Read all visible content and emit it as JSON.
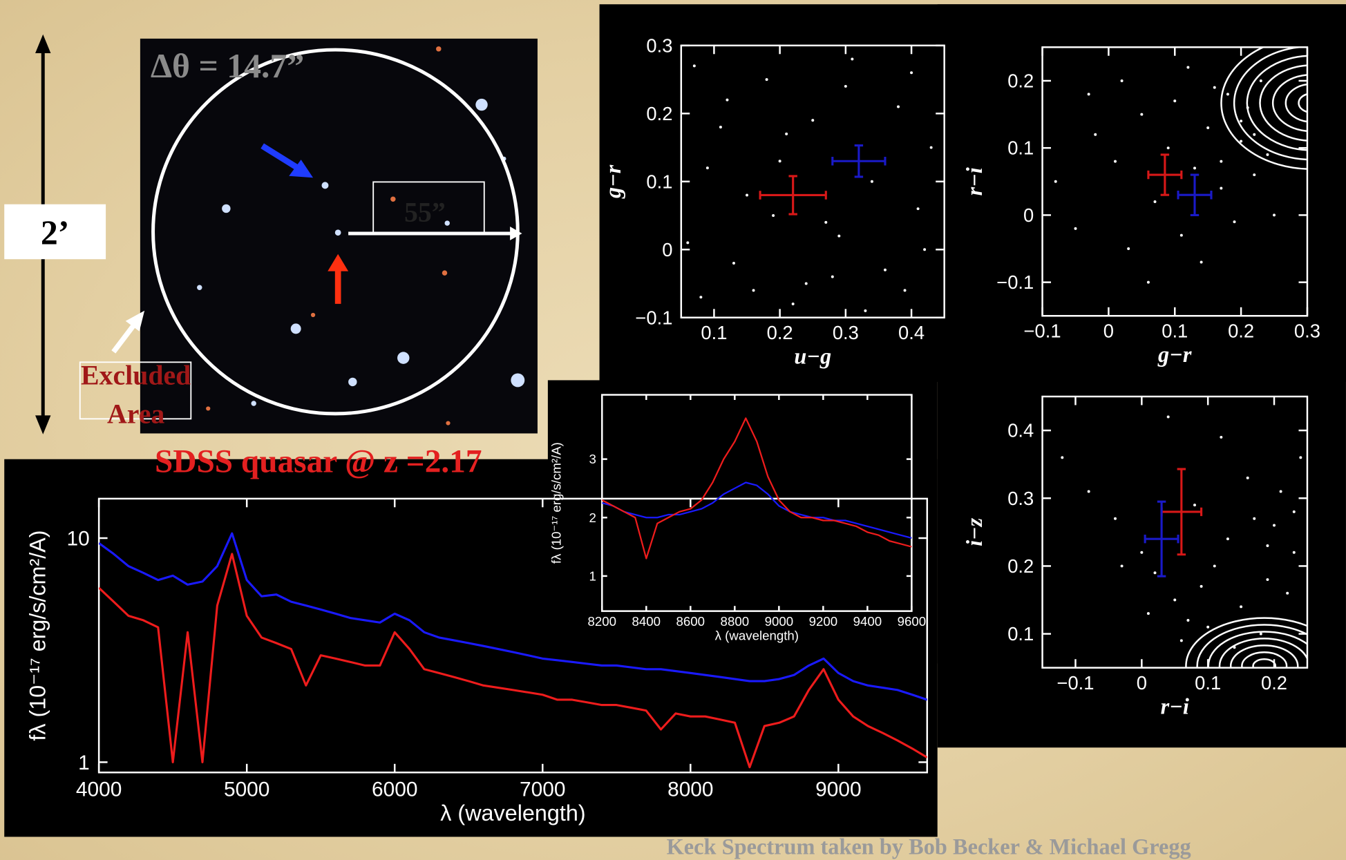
{
  "slide": {
    "angle_label": "Δθ = 14.7”",
    "radius_label": "55”",
    "scale_label": "2’",
    "excluded_label": [
      "Excluded",
      "Area"
    ],
    "caption": "SDSS quasar @ z =2.17",
    "credit": "Keck Spectrum taken by Bob Becker & Michael Gregg"
  },
  "chart_data": [
    {
      "type": "scatter",
      "x_label": "u−g",
      "y_label": "g−r",
      "xlim": [
        0.05,
        0.45
      ],
      "ylim": [
        -0.1,
        0.3
      ],
      "xticks": [
        0.1,
        0.2,
        0.3,
        0.4
      ],
      "yticks": [
        {
          "value": -0.1,
          "label": "−0.1"
        },
        0,
        0.1,
        0.2,
        0.3
      ],
      "series": [
        {
          "color": "#ffffff",
          "x": [
            0.07,
            0.12,
            0.18,
            0.25,
            0.31,
            0.38,
            0.43,
            0.09,
            0.15,
            0.21,
            0.27,
            0.34,
            0.41,
            0.06,
            0.13,
            0.19,
            0.24,
            0.29,
            0.36,
            0.42,
            0.08,
            0.16,
            0.22,
            0.28,
            0.33,
            0.39,
            0.11,
            0.2,
            0.3,
            0.4
          ],
          "y": [
            0.27,
            0.22,
            0.25,
            0.19,
            0.28,
            0.21,
            0.15,
            0.12,
            0.08,
            0.17,
            0.04,
            0.1,
            0.06,
            0.01,
            -0.02,
            0.05,
            -0.05,
            0.02,
            -0.03,
            0.0,
            -0.07,
            -0.06,
            -0.08,
            -0.04,
            -0.09,
            -0.06,
            0.18,
            0.13,
            0.24,
            0.26
          ]
        },
        {
          "color": "#d81818",
          "x": [
            0.22
          ],
          "y": [
            0.08
          ],
          "xerr": [
            0.05
          ],
          "yerr": [
            0.028
          ]
        },
        {
          "color": "#1a1ac8",
          "x": [
            0.32
          ],
          "y": [
            0.13
          ],
          "xerr": [
            0.04
          ],
          "yerr": [
            0.023
          ]
        }
      ]
    },
    {
      "type": "scatter",
      "x_label": "g−r",
      "y_label": "r−i",
      "xlim": [
        -0.1,
        0.3
      ],
      "ylim": [
        -0.15,
        0.25
      ],
      "xticks": [
        {
          "value": -0.1,
          "label": "−0.1"
        },
        0,
        0.1,
        0.2,
        0.3
      ],
      "yticks": [
        {
          "value": -0.1,
          "label": "−0.1"
        },
        0,
        0.1,
        0.2
      ],
      "series": [
        {
          "color": "#ffffff",
          "x": [
            -0.08,
            -0.05,
            -0.02,
            0.01,
            0.03,
            0.05,
            0.07,
            0.09,
            0.11,
            0.13,
            0.15,
            0.17,
            0.18,
            0.2,
            0.21,
            0.22,
            0.23,
            0.24,
            0.19,
            0.16,
            0.14,
            0.12,
            0.1,
            0.06,
            0.02,
            -0.03,
            0.2,
            0.22,
            0.17,
            0.25
          ],
          "y": [
            0.05,
            -0.02,
            0.12,
            0.08,
            -0.05,
            0.15,
            0.02,
            0.1,
            -0.03,
            0.07,
            0.13,
            0.04,
            0.18,
            0.11,
            0.16,
            0.06,
            0.2,
            0.09,
            -0.01,
            0.19,
            -0.07,
            0.22,
            0.17,
            -0.1,
            0.2,
            0.18,
            0.14,
            0.12,
            0.08,
            0.0
          ]
        },
        {
          "color": "#d81818",
          "x": [
            0.085
          ],
          "y": [
            0.06
          ],
          "xerr": [
            0.025
          ],
          "yerr": [
            0.03
          ]
        },
        {
          "color": "#1a1ac8",
          "x": [
            0.13
          ],
          "y": [
            0.03
          ],
          "xerr": [
            0.025
          ],
          "yerr": [
            0.03
          ]
        }
      ]
    },
    {
      "type": "scatter",
      "x_label": "r−i",
      "y_label": "i−z",
      "xlim": [
        -0.15,
        0.25
      ],
      "ylim": [
        0.05,
        0.45
      ],
      "xticks": [
        {
          "value": -0.1,
          "label": "−0.1"
        },
        0,
        0.1,
        0.2
      ],
      "yticks": [
        0.1,
        0.2,
        0.3,
        0.4
      ],
      "series": [
        {
          "color": "#ffffff",
          "x": [
            -0.12,
            -0.08,
            -0.04,
            0.0,
            0.02,
            0.05,
            0.07,
            0.09,
            0.11,
            0.13,
            0.15,
            0.17,
            0.19,
            0.21,
            0.23,
            0.24,
            0.18,
            0.14,
            0.1,
            0.06,
            0.01,
            -0.03,
            0.2,
            0.22,
            0.16,
            0.12,
            0.08,
            0.04,
            0.19,
            0.23
          ],
          "y": [
            0.36,
            0.31,
            0.27,
            0.22,
            0.19,
            0.15,
            0.12,
            0.17,
            0.2,
            0.24,
            0.14,
            0.27,
            0.18,
            0.31,
            0.22,
            0.36,
            0.1,
            0.08,
            0.11,
            0.09,
            0.13,
            0.2,
            0.26,
            0.16,
            0.33,
            0.39,
            0.29,
            0.42,
            0.23,
            0.28
          ]
        },
        {
          "color": "#d81818",
          "x": [
            0.06
          ],
          "y": [
            0.28
          ],
          "xerr": [
            0.03
          ],
          "yerr": [
            0.063
          ]
        },
        {
          "color": "#1a1ac8",
          "x": [
            0.03
          ],
          "y": [
            0.24
          ],
          "xerr": [
            0.025
          ],
          "yerr": [
            0.055
          ]
        }
      ]
    },
    {
      "type": "line",
      "x_label": "λ   (wavelength)",
      "y_label": "fλ  (10⁻¹⁷ erg/s/cm²/A)",
      "ylog": true,
      "xlim": [
        4000,
        9600
      ],
      "ylim": [
        0.9,
        15
      ],
      "xticks": [
        4000,
        5000,
        6000,
        7000,
        8000,
        9000
      ],
      "yticks": [
        1,
        10
      ],
      "x": [
        4000,
        4100,
        4200,
        4300,
        4400,
        4500,
        4600,
        4700,
        4800,
        4900,
        5000,
        5100,
        5200,
        5300,
        5400,
        5500,
        5600,
        5700,
        5800,
        5900,
        6000,
        6100,
        6200,
        6300,
        6400,
        6500,
        6600,
        6700,
        6800,
        6900,
        7000,
        7100,
        7200,
        7300,
        7400,
        7500,
        7600,
        7700,
        7800,
        7900,
        8000,
        8100,
        8200,
        8300,
        8400,
        8500,
        8600,
        8700,
        8800,
        8900,
        9000,
        9100,
        9200,
        9300,
        9400,
        9500,
        9600
      ],
      "series": [
        {
          "color": "#1a1aff",
          "values": [
            9.5,
            8.5,
            7.5,
            7.0,
            6.5,
            6.8,
            6.2,
            6.4,
            7.5,
            10.5,
            6.5,
            5.5,
            5.6,
            5.2,
            5.0,
            4.8,
            4.6,
            4.4,
            4.3,
            4.2,
            4.6,
            4.3,
            3.8,
            3.6,
            3.5,
            3.4,
            3.3,
            3.2,
            3.1,
            3.0,
            2.9,
            2.85,
            2.8,
            2.75,
            2.7,
            2.7,
            2.65,
            2.6,
            2.6,
            2.55,
            2.5,
            2.45,
            2.4,
            2.35,
            2.3,
            2.3,
            2.35,
            2.45,
            2.7,
            2.9,
            2.5,
            2.3,
            2.2,
            2.15,
            2.1,
            2.0,
            1.9
          ]
        },
        {
          "color": "#ee1c1c",
          "values": [
            6.0,
            5.2,
            4.5,
            4.3,
            4.0,
            1.0,
            3.8,
            1.0,
            5.0,
            8.5,
            4.5,
            3.6,
            3.4,
            3.2,
            2.2,
            3.0,
            2.9,
            2.8,
            2.7,
            2.7,
            3.8,
            3.2,
            2.6,
            2.5,
            2.4,
            2.3,
            2.2,
            2.15,
            2.1,
            2.05,
            2.0,
            1.9,
            1.9,
            1.85,
            1.8,
            1.8,
            1.75,
            1.7,
            1.4,
            1.65,
            1.6,
            1.6,
            1.55,
            1.5,
            0.95,
            1.45,
            1.5,
            1.6,
            2.1,
            2.6,
            1.9,
            1.6,
            1.45,
            1.35,
            1.25,
            1.15,
            1.05
          ]
        }
      ]
    },
    {
      "type": "line",
      "x_label": "λ  (wavelength)",
      "y_label": "fλ  (10⁻¹⁷ erg/s/cm²/A)",
      "xlim": [
        8200,
        9600
      ],
      "ylim": [
        0.4,
        4.1
      ],
      "xticks": [
        8200,
        8400,
        8600,
        8800,
        9000,
        9200,
        9400,
        9600
      ],
      "yticks": [
        1,
        2,
        3
      ],
      "x": [
        8200,
        8250,
        8300,
        8350,
        8400,
        8450,
        8500,
        8550,
        8600,
        8650,
        8700,
        8750,
        8800,
        8850,
        8900,
        8950,
        9000,
        9050,
        9100,
        9150,
        9200,
        9250,
        9300,
        9350,
        9400,
        9450,
        9500,
        9550,
        9600
      ],
      "series": [
        {
          "color": "#1a1aff",
          "values": [
            2.25,
            2.2,
            2.1,
            2.05,
            2.0,
            2.0,
            2.05,
            2.05,
            2.1,
            2.15,
            2.25,
            2.4,
            2.5,
            2.6,
            2.55,
            2.4,
            2.2,
            2.1,
            2.05,
            2.0,
            2.0,
            1.95,
            1.95,
            1.9,
            1.85,
            1.8,
            1.75,
            1.7,
            1.65
          ]
        },
        {
          "color": "#ee1c1c",
          "values": [
            2.3,
            2.2,
            2.1,
            2.0,
            1.3,
            1.9,
            2.0,
            2.1,
            2.15,
            2.3,
            2.6,
            3.0,
            3.3,
            3.7,
            3.3,
            2.7,
            2.3,
            2.1,
            2.0,
            2.0,
            1.95,
            1.95,
            1.9,
            1.85,
            1.75,
            1.7,
            1.6,
            1.55,
            1.5
          ]
        }
      ]
    }
  ]
}
